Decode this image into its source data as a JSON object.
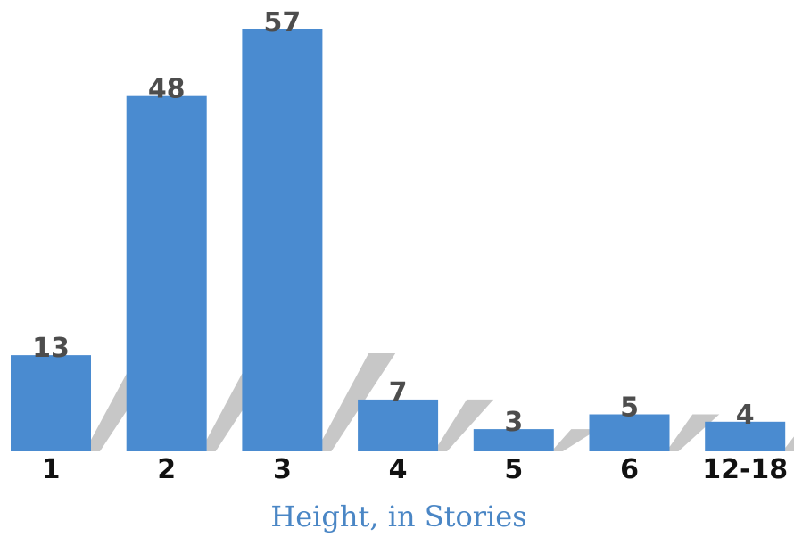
{
  "chart_data": {
    "type": "bar",
    "title": "",
    "xlabel": "Height, in Stories",
    "ylabel": "",
    "categories": [
      "1",
      "2",
      "3",
      "4",
      "5",
      "6",
      "12-18"
    ],
    "values": [
      13,
      48,
      57,
      7,
      3,
      5,
      4
    ],
    "ylim": [
      0,
      57
    ],
    "grid": false,
    "legend": "none",
    "colors": {
      "bar": "#4a8bd0",
      "shadow": "#bdbdbd",
      "value_label": "#4d4d4d",
      "tick_label": "#111111",
      "axis_title": "#4a86c5"
    }
  }
}
